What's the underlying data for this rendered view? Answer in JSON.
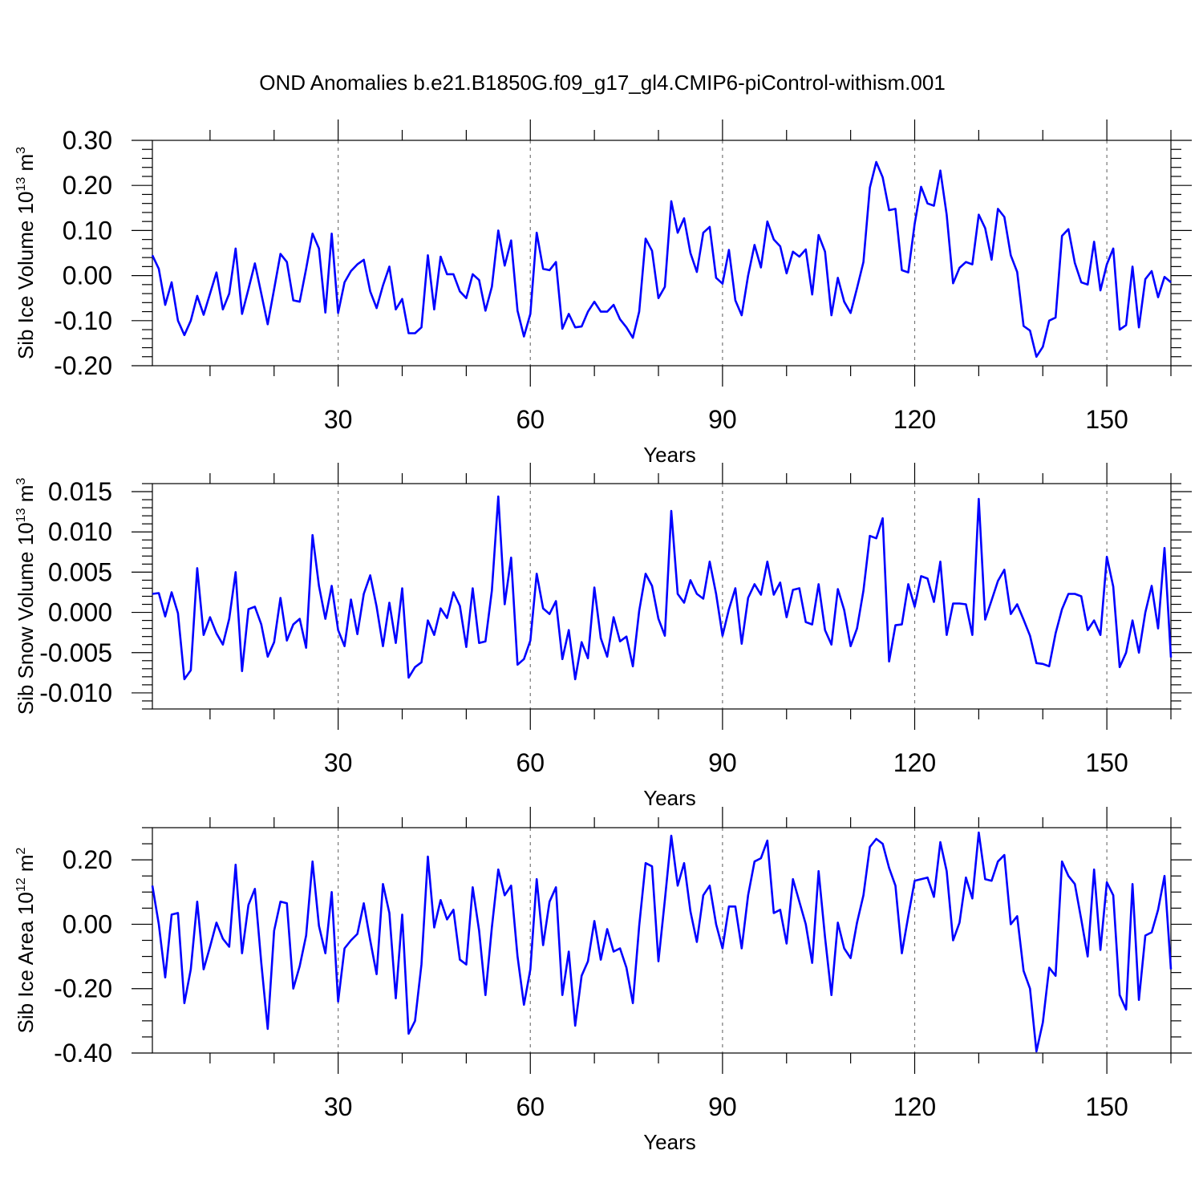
{
  "figure_title": "OND Anomalies b.e21.B1850G.f09_g17_gl4.CMIP6-piControl-withism.001",
  "series_color": "#0000ff",
  "chart_data": [
    {
      "type": "line",
      "title": "OND Anomalies b.e21.B1850G.f09_g17_gl4.CMIP6-piControl-withism.001",
      "xlabel": "Years",
      "ylabel_main": "Sib Ice Volume 10",
      "ylabel_exp": "13",
      "ylabel_unit": " m",
      "ylabel_unit_exp": "3",
      "xlim": [
        1,
        160
      ],
      "ylim": [
        -0.2,
        0.3
      ],
      "xticks": [
        30,
        60,
        90,
        120,
        150
      ],
      "xtick_labels": [
        "30",
        "60",
        "90",
        "120",
        "150"
      ],
      "yticks": [
        -0.2,
        -0.1,
        0.0,
        0.1,
        0.2,
        0.3
      ],
      "ytick_labels": [
        "-0.20",
        "-0.10",
        "0.00",
        "0.10",
        "0.20",
        "0.30"
      ],
      "y_minor_step": 0.02,
      "grid": "dashed vertical at major x ticks",
      "values": [
        0.045,
        0.015,
        -0.065,
        -0.015,
        -0.1,
        -0.132,
        -0.1,
        -0.045,
        -0.087,
        -0.04,
        0.007,
        -0.075,
        -0.04,
        0.06,
        -0.085,
        -0.03,
        0.027,
        -0.04,
        -0.108,
        -0.03,
        0.048,
        0.03,
        -0.055,
        -0.058,
        0.015,
        0.093,
        0.06,
        -0.082,
        0.093,
        -0.083,
        -0.015,
        0.01,
        0.025,
        0.035,
        -0.035,
        -0.072,
        -0.022,
        0.02,
        -0.075,
        -0.052,
        -0.128,
        -0.128,
        -0.115,
        0.045,
        -0.075,
        0.042,
        0.003,
        0.003,
        -0.035,
        -0.05,
        0.003,
        -0.01,
        -0.078,
        -0.025,
        0.1,
        0.022,
        0.078,
        -0.078,
        -0.135,
        -0.085,
        0.095,
        0.015,
        0.012,
        0.03,
        -0.118,
        -0.085,
        -0.115,
        -0.113,
        -0.08,
        -0.058,
        -0.08,
        -0.08,
        -0.065,
        -0.097,
        -0.115,
        -0.138,
        -0.08,
        0.082,
        0.055,
        -0.05,
        -0.025,
        0.165,
        0.095,
        0.127,
        0.05,
        0.008,
        0.095,
        0.108,
        -0.005,
        -0.018,
        0.057,
        -0.055,
        -0.088,
        0.0,
        0.068,
        0.018,
        0.12,
        0.08,
        0.065,
        0.005,
        0.053,
        0.042,
        0.058,
        -0.042,
        0.09,
        0.053,
        -0.088,
        -0.005,
        -0.058,
        -0.083,
        -0.028,
        0.03,
        0.195,
        0.252,
        0.218,
        0.145,
        0.148,
        0.012,
        0.007,
        0.115,
        0.197,
        0.16,
        0.155,
        0.233,
        0.135,
        -0.017,
        0.017,
        0.03,
        0.025,
        0.135,
        0.105,
        0.035,
        0.148,
        0.13,
        0.045,
        0.008,
        -0.112,
        -0.122,
        -0.18,
        -0.158,
        -0.1,
        -0.093,
        0.088,
        0.103,
        0.028,
        -0.015,
        -0.02,
        0.075,
        -0.033,
        0.025,
        0.06,
        -0.12,
        -0.11,
        0.02,
        -0.115,
        -0.008,
        0.01,
        -0.048,
        -0.003,
        -0.015
      ]
    },
    {
      "type": "line",
      "xlabel": "Years",
      "ylabel_main": "Sib Snow Volume 10",
      "ylabel_exp": "13",
      "ylabel_unit": " m",
      "ylabel_unit_exp": "3",
      "xlim": [
        1,
        160
      ],
      "ylim": [
        -0.012,
        0.016
      ],
      "xticks": [
        30,
        60,
        90,
        120,
        150
      ],
      "xtick_labels": [
        "30",
        "60",
        "90",
        "120",
        "150"
      ],
      "yticks": [
        -0.01,
        -0.005,
        0.0,
        0.005,
        0.01,
        0.015
      ],
      "ytick_labels": [
        "-0.010",
        "-0.005",
        "0.000",
        "0.005",
        "0.010",
        "0.015"
      ],
      "y_minor_step": 0.001,
      "grid": "dashed vertical at major x ticks",
      "values": [
        0.0023,
        0.0024,
        -0.0005,
        0.0025,
        -0.0001,
        -0.0083,
        -0.0072,
        0.0055,
        -0.0028,
        -0.0006,
        -0.0026,
        -0.004,
        -0.0008,
        0.005,
        -0.0073,
        0.0004,
        0.0007,
        -0.0015,
        -0.0055,
        -0.0037,
        0.0018,
        -0.0035,
        -0.0015,
        -0.0008,
        -0.0044,
        0.0096,
        0.0033,
        -0.0008,
        0.0033,
        -0.0022,
        -0.0042,
        0.0016,
        -0.0027,
        0.0023,
        0.0046,
        0.0007,
        -0.0042,
        0.0012,
        -0.0038,
        0.003,
        -0.0081,
        -0.0068,
        -0.0062,
        -0.001,
        -0.0028,
        0.0005,
        -0.0007,
        0.0025,
        0.0008,
        -0.0043,
        0.003,
        -0.0038,
        -0.0036,
        0.0027,
        0.0144,
        0.001,
        0.0068,
        -0.0065,
        -0.0058,
        -0.0035,
        0.0048,
        0.0005,
        -0.0002,
        0.0014,
        -0.0058,
        -0.0022,
        -0.0083,
        -0.0037,
        -0.0057,
        0.0031,
        -0.0032,
        -0.0055,
        -0.0006,
        -0.0036,
        -0.003,
        -0.0067,
        0.0002,
        0.0048,
        0.0033,
        -0.0008,
        -0.0029,
        0.0126,
        0.0023,
        0.0012,
        0.004,
        0.0023,
        0.0017,
        0.0063,
        0.0023,
        -0.0029,
        0.0004,
        0.003,
        -0.0039,
        0.0018,
        0.0035,
        0.0022,
        0.0063,
        0.0022,
        0.0037,
        -0.0006,
        0.0028,
        0.003,
        -0.0012,
        -0.0015,
        0.0035,
        -0.0022,
        -0.004,
        0.0029,
        0.0003,
        -0.0042,
        -0.002,
        0.0027,
        0.0095,
        0.0092,
        0.0117,
        -0.0061,
        -0.0016,
        -0.0015,
        0.0035,
        0.0007,
        0.0045,
        0.0042,
        0.0013,
        0.0063,
        -0.0028,
        0.0011,
        0.0011,
        0.001,
        -0.0028,
        0.0141,
        -0.0009,
        0.0015,
        0.0039,
        0.0053,
        -0.0002,
        0.001,
        -0.0009,
        -0.0029,
        -0.0063,
        -0.0064,
        -0.0067,
        -0.0026,
        0.0004,
        0.0023,
        0.0023,
        0.002,
        -0.0022,
        -0.001,
        -0.0028,
        0.0069,
        0.0032,
        -0.0068,
        -0.005,
        -0.001,
        -0.005,
        0.0,
        0.0033,
        -0.002,
        0.008,
        -0.0056
      ]
    },
    {
      "type": "line",
      "xlabel": "Years",
      "ylabel_main": "Sib Ice Area 10",
      "ylabel_exp": "12",
      "ylabel_unit": " m",
      "ylabel_unit_exp": "2",
      "xlim": [
        1,
        160
      ],
      "ylim": [
        -0.4,
        0.3
      ],
      "xticks": [
        30,
        60,
        90,
        120,
        150
      ],
      "xtick_labels": [
        "30",
        "60",
        "90",
        "120",
        "150"
      ],
      "yticks": [
        -0.4,
        -0.2,
        0.0,
        0.2
      ],
      "ytick_labels": [
        "-0.40",
        "-0.20",
        "0.00",
        "0.20"
      ],
      "y_minor_step": 0.05,
      "grid": "dashed vertical at major x ticks",
      "values": [
        0.12,
        0.0,
        -0.165,
        0.03,
        0.035,
        -0.245,
        -0.14,
        0.07,
        -0.14,
        -0.07,
        0.005,
        -0.045,
        -0.07,
        0.185,
        -0.09,
        0.06,
        0.11,
        -0.12,
        -0.325,
        -0.02,
        0.07,
        0.065,
        -0.2,
        -0.13,
        -0.035,
        0.195,
        -0.005,
        -0.09,
        0.1,
        -0.24,
        -0.075,
        -0.05,
        -0.03,
        0.065,
        -0.05,
        -0.155,
        0.125,
        0.035,
        -0.23,
        0.03,
        -0.34,
        -0.3,
        -0.125,
        0.21,
        -0.01,
        0.075,
        0.015,
        0.045,
        -0.11,
        -0.125,
        0.115,
        -0.02,
        -0.22,
        -0.01,
        0.17,
        0.09,
        0.12,
        -0.1,
        -0.25,
        -0.14,
        0.14,
        -0.065,
        0.07,
        0.115,
        -0.22,
        -0.085,
        -0.315,
        -0.16,
        -0.115,
        0.01,
        -0.11,
        -0.015,
        -0.085,
        -0.075,
        -0.135,
        -0.245,
        -0.005,
        0.19,
        0.18,
        -0.115,
        0.075,
        0.275,
        0.12,
        0.19,
        0.04,
        -0.055,
        0.09,
        0.12,
        0.0,
        -0.075,
        0.055,
        0.055,
        -0.075,
        0.09,
        0.195,
        0.205,
        0.26,
        0.035,
        0.045,
        -0.06,
        0.14,
        0.07,
        0.0,
        -0.12,
        0.165,
        -0.04,
        -0.22,
        0.005,
        -0.075,
        -0.105,
        0.005,
        0.09,
        0.24,
        0.265,
        0.25,
        0.175,
        0.12,
        -0.09,
        0.025,
        0.135,
        0.14,
        0.145,
        0.085,
        0.255,
        0.165,
        -0.05,
        0.005,
        0.145,
        0.08,
        0.285,
        0.14,
        0.135,
        0.195,
        0.215,
        0.0,
        0.025,
        -0.145,
        -0.2,
        -0.395,
        -0.305,
        -0.135,
        -0.16,
        0.195,
        0.15,
        0.125,
        0.015,
        -0.1,
        0.17,
        -0.08,
        0.13,
        0.09,
        -0.22,
        -0.265,
        0.125,
        -0.235,
        -0.035,
        -0.025,
        0.045,
        0.15,
        -0.14
      ]
    }
  ]
}
